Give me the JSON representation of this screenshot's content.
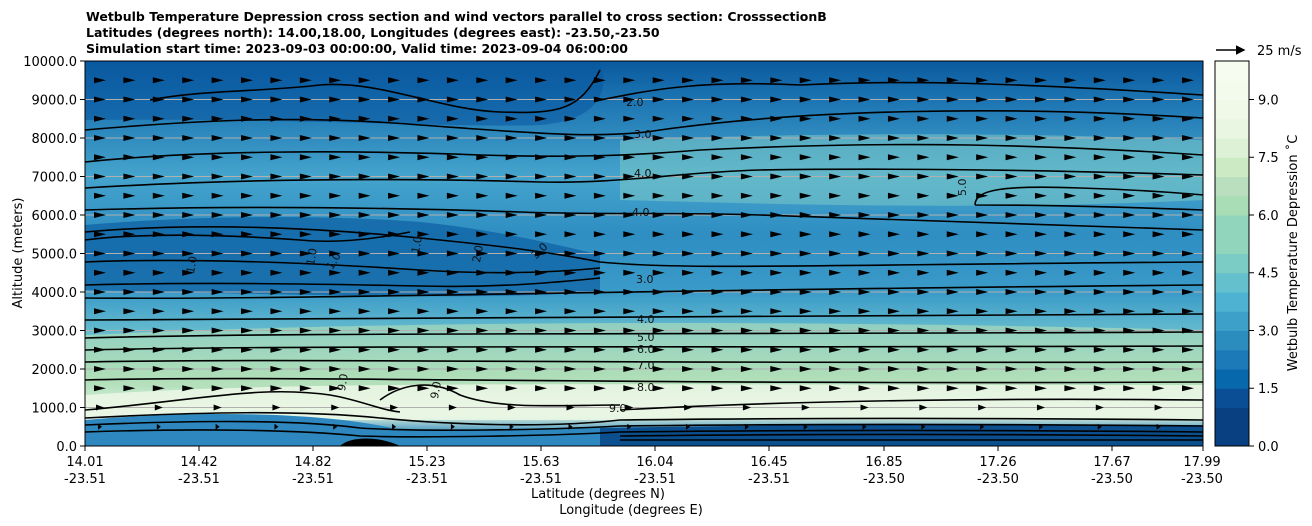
{
  "chart_data": {
    "type": "contour",
    "title_lines": [
      "Wetbulb Temperature Depression cross section and wind vectors parallel to cross section: CrosssectionB",
      "Latitudes (degrees north): 14.00,18.00, Longitudes (degrees east): -23.50,-23.50",
      "Simulation start time: 2023-09-03 00:00:00, Valid time: 2023-09-04 06:00:00"
    ],
    "xlabel_lines": [
      "Latitude (degrees N)",
      "Longitude (degrees E)"
    ],
    "ylabel": "Altitude (meters)",
    "x_ticks": [
      {
        "lat": "14.01",
        "lon": "-23.51"
      },
      {
        "lat": "14.42",
        "lon": "-23.51"
      },
      {
        "lat": "14.82",
        "lon": "-23.51"
      },
      {
        "lat": "15.23",
        "lon": "-23.51"
      },
      {
        "lat": "15.63",
        "lon": "-23.51"
      },
      {
        "lat": "16.04",
        "lon": "-23.51"
      },
      {
        "lat": "16.45",
        "lon": "-23.51"
      },
      {
        "lat": "16.85",
        "lon": "-23.50"
      },
      {
        "lat": "17.26",
        "lon": "-23.50"
      },
      {
        "lat": "17.67",
        "lon": "-23.50"
      },
      {
        "lat": "17.99",
        "lon": "-23.50"
      }
    ],
    "y_ticks": [
      "0.0",
      "1000.0",
      "2000.0",
      "3000.0",
      "4000.0",
      "5000.0",
      "6000.0",
      "7000.0",
      "8000.0",
      "9000.0",
      "10000.0"
    ],
    "ylim": [
      0,
      10000
    ],
    "colorbar": {
      "label": "Wetbulb Temperature Depression ˚C",
      "ticks": [
        "0.0",
        "1.5",
        "3.0",
        "4.5",
        "6.0",
        "7.5",
        "9.0"
      ],
      "range": [
        0,
        10
      ],
      "colormap": "GnBu_r"
    },
    "quiver_key": "25 m/s",
    "contour_levels": [
      1.0,
      2.0,
      3.0,
      4.0,
      5.0,
      6.0,
      7.0,
      8.0,
      9.0
    ],
    "contour_labels": [
      {
        "text": "5.0",
        "x": 16.8,
        "y": 6600
      },
      {
        "text": "2.0",
        "x": 15.9,
        "y": 8800
      },
      {
        "text": "3.0",
        "x": 15.93,
        "y": 8100
      },
      {
        "text": "4.0",
        "x": 15.93,
        "y": 7100
      },
      {
        "text": "4.0",
        "x": 15.93,
        "y": 6000
      },
      {
        "text": "3.0",
        "x": 15.93,
        "y": 4200
      },
      {
        "text": "4.0",
        "x": 15.93,
        "y": 3200
      },
      {
        "text": "5.0",
        "x": 15.93,
        "y": 2800
      },
      {
        "text": "6.0",
        "x": 15.93,
        "y": 2500
      },
      {
        "text": "7.0",
        "x": 15.93,
        "y": 2100
      },
      {
        "text": "8.0",
        "x": 15.93,
        "y": 1500
      },
      {
        "text": "9.0",
        "x": 15.9,
        "y": 1000
      },
      {
        "text": "9.0",
        "x": 14.85,
        "y": 1400
      },
      {
        "text": "9.0",
        "x": 15.23,
        "y": 1300
      },
      {
        "text": "1.0",
        "x": 14.9,
        "y": 4600
      },
      {
        "text": "1.0",
        "x": 15.07,
        "y": 5000
      },
      {
        "text": "1.0",
        "x": 14.62,
        "y": 4500
      },
      {
        "text": "2.0",
        "x": 15.4,
        "y": 4700
      },
      {
        "text": "3.0",
        "x": 15.6,
        "y": 5000
      },
      {
        "text": "1.0",
        "x": 14.32,
        "y": 4500
      }
    ],
    "wind": "westerly arrows parallel to cross section at every grid point; stronger (about 25 m/s) above 1500 m, short near the surface"
  }
}
